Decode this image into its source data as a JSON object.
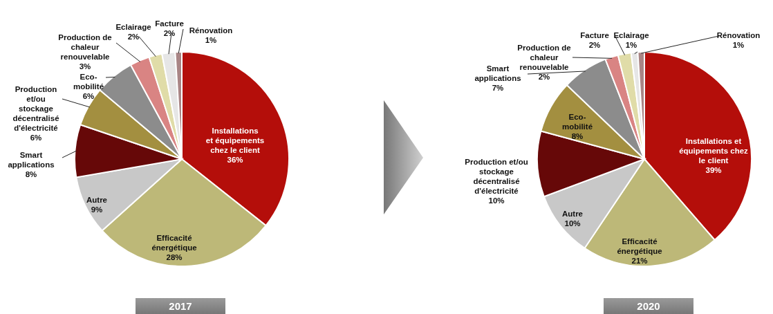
{
  "chart_data": [
    {
      "type": "pie",
      "title": "2017",
      "categories": [
        "Installations et équipements chez le client",
        "Efficacité énergétique",
        "Autre",
        "Smart applications",
        "Production et/ou stockage décentralisé d'électricité",
        "Eco-mobilité",
        "Production de chaleur renouvelable",
        "Eclairage",
        "Facture",
        "Rénovation"
      ],
      "values": [
        36,
        28,
        9,
        8,
        6,
        6,
        3,
        2,
        2,
        1
      ],
      "value_labels": [
        "36%",
        "28%",
        "9%",
        "8%",
        "6%",
        "6%",
        "3%",
        "2%",
        "2%",
        "1%"
      ],
      "colors": [
        "#b40e0a",
        "#bdb878",
        "#c8c8c8",
        "#660808",
        "#a38f40",
        "#8c8c8c",
        "#d98483",
        "#e0dca8",
        "#e6e6e6",
        "#a98585"
      ]
    },
    {
      "type": "pie",
      "title": "2020",
      "categories": [
        "Installations et équipements chez le client",
        "Efficacité énergétique",
        "Autre",
        "Production et/ou stockage décentralisé d'électricité",
        "Eco-mobilité",
        "Smart applications",
        "Production de chaleur renouvelable",
        "Facture",
        "Eclairage",
        "Rénovation"
      ],
      "values": [
        39,
        21,
        10,
        10,
        8,
        7,
        2,
        2,
        1,
        1
      ],
      "value_labels": [
        "39%",
        "21%",
        "10%",
        "10%",
        "8%",
        "7%",
        "2%",
        "2%",
        "1%",
        "1%"
      ],
      "colors": [
        "#b40e0a",
        "#bdb878",
        "#c8c8c8",
        "#660808",
        "#a38f40",
        "#8c8c8c",
        "#d98483",
        "#e0dca8",
        "#e6e6e6",
        "#a98585"
      ]
    }
  ]
}
